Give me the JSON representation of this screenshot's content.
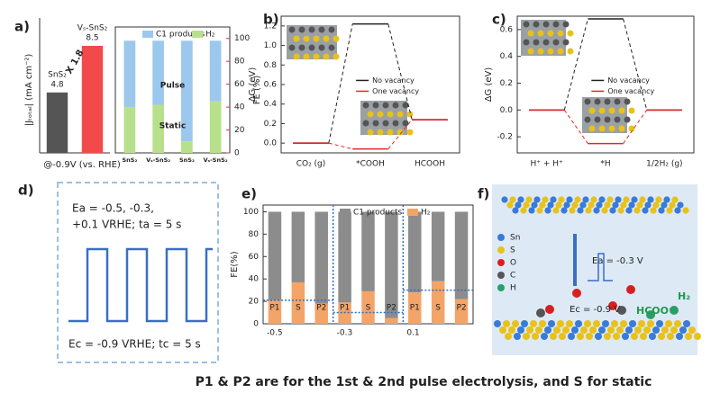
{
  "panel_labels": [
    "a)",
    "b)",
    "c)",
    "d)",
    "e)",
    "f)"
  ],
  "caption": "P1 & P2 are for the 1st & 2nd pulse electrolysis, and S for static",
  "chart_data": [
    {
      "type": "bar",
      "y_label": "|Jₜₒₜₐₗ| (mA cm⁻²)",
      "x_label": "@-0.9V (vs. RHE)",
      "categories": [
        "SnS₂",
        "Vₛ-SnS₂"
      ],
      "values": [
        4.8,
        8.5
      ],
      "colors": [
        "#555555",
        "#f24a4a"
      ],
      "ylim": [
        0,
        10
      ],
      "annotation": "X 1.8"
    },
    {
      "type": "stacked_bar",
      "y_label": "FE (%)",
      "axis_color": "#e53030",
      "categories": [
        "SnS₂",
        "Vₛ-SnS₂",
        "SnS₂",
        "Vₛ-SnS₂"
      ],
      "series": [
        {
          "name": "C1 products",
          "color": "#9cc8ee",
          "values": [
            58,
            56,
            88,
            53
          ]
        },
        {
          "name": "H₂",
          "color": "#b8e08c",
          "values": [
            40,
            42,
            10,
            45
          ]
        }
      ],
      "ylim": [
        0,
        110
      ],
      "yticks": [
        0,
        20,
        40,
        60,
        80,
        100
      ],
      "annotations": [
        "Pulse",
        "Static"
      ]
    },
    {
      "type": "energy",
      "y_label": "ΔG (eV)",
      "categories": [
        "CO₂ (g)",
        "*COOH",
        "HCOOH"
      ],
      "series": [
        {
          "name": "No vacancy",
          "color": "#222222",
          "values": [
            0,
            1.22,
            0.24
          ]
        },
        {
          "name": "One vacancy",
          "color": "#e02828",
          "values": [
            0,
            -0.06,
            0.24
          ]
        }
      ],
      "ylim": [
        -0.1,
        1.3
      ],
      "yticks": [
        {
          "value": 0,
          "label": "0.0"
        },
        0.2,
        0.4,
        0.6,
        0.8,
        {
          "value": 1,
          "label": "1.0"
        },
        1.2
      ]
    },
    {
      "type": "energy",
      "y_label": "ΔG (eV)",
      "categories": [
        "H⁺ + H⁺",
        "*H",
        "1/2H₂ (g)"
      ],
      "series": [
        {
          "name": "No vacancy",
          "color": "#222222",
          "values": [
            0,
            0.68,
            0
          ]
        },
        {
          "name": "One vacancy",
          "color": "#e02828",
          "values": [
            0,
            -0.25,
            0
          ]
        }
      ],
      "ylim": [
        -0.32,
        0.7
      ],
      "yticks": [
        -0.2,
        {
          "value": 0,
          "label": "0.0"
        },
        0.2,
        0.4,
        0.6
      ]
    },
    {
      "type": "stacked_bar",
      "y_label": "FE(%)",
      "categories": [
        "P1",
        "S",
        "P2",
        "P1",
        "S",
        "P2",
        "P1",
        "S",
        "P2"
      ],
      "group_labels": [
        "-0.5",
        "-0.3",
        "0.1"
      ],
      "series": [
        {
          "name": "C1 products",
          "color": "#8c8c8c",
          "values": [
            79,
            63,
            82,
            81,
            71,
            95,
            72,
            62,
            78
          ]
        },
        {
          "name": "H₂",
          "color": "#f3a468",
          "values": [
            21,
            37,
            18,
            19,
            29,
            5,
            28,
            38,
            22
          ]
        }
      ],
      "reference_lines": [
        21,
        10,
        30
      ],
      "ylim": [
        0,
        106
      ],
      "yticks": [
        0,
        20,
        40,
        60,
        80,
        100
      ]
    }
  ],
  "panel_d": {
    "lines_top": [
      "Ea = -0.5, -0.3,",
      "+0.1 VRHE; ta = 5 s"
    ],
    "line_bottom": "Ec = -0.9 VRHE; tc = 5 s"
  },
  "panel_f": {
    "legend": [
      "Sn",
      "S",
      "O",
      "C",
      "H"
    ],
    "ea": "Ea = -0.3 V",
    "ec": "Ec = -0.9 V",
    "product1": "HCOO⁻",
    "product2": "H₂"
  }
}
